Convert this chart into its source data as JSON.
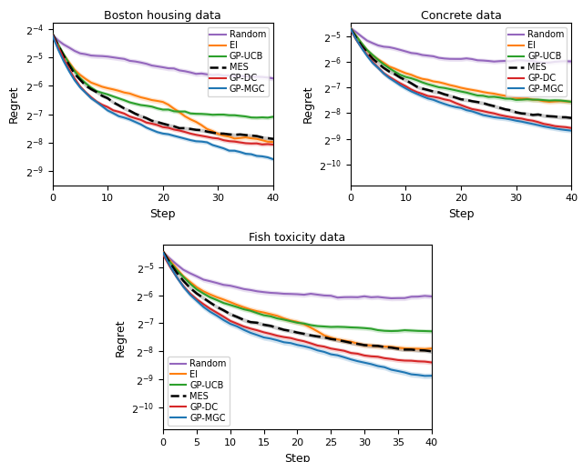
{
  "titles": [
    "Boston housing data",
    "Concrete data",
    "Fish toxicity data"
  ],
  "xlabel": "Step",
  "ylabel": "Regret",
  "n_steps": 41,
  "methods": [
    "Random",
    "EI",
    "GP-UCB",
    "MES",
    "GP-DC",
    "GP-MGC"
  ],
  "colors": [
    "#9467bd",
    "#ff7f0e",
    "#2ca02c",
    "#000000",
    "#d62728",
    "#1f77b4"
  ],
  "line_styles": [
    "-",
    "-",
    "-",
    "--",
    "-",
    "-"
  ],
  "alpha_fill": 0.2,
  "seeds": [
    0,
    1,
    2,
    3,
    4,
    5
  ],
  "boston": {
    "ylim_exp": [
      -9.5,
      -3.8
    ],
    "yticks_exp": [
      -4,
      -5,
      -6,
      -7,
      -8,
      -9
    ],
    "means": {
      "Random": [
        -4.2,
        -4.4,
        -4.55,
        -4.67,
        -4.76,
        -4.83,
        -4.88,
        -4.92,
        -4.95,
        -4.97,
        -5.0,
        -5.03,
        -5.07,
        -5.1,
        -5.14,
        -5.18,
        -5.22,
        -5.26,
        -5.3,
        -5.33,
        -5.36,
        -5.39,
        -5.42,
        -5.45,
        -5.47,
        -5.5,
        -5.52,
        -5.54,
        -5.56,
        -5.58,
        -5.6,
        -5.62,
        -5.63,
        -5.65,
        -5.66,
        -5.67,
        -5.68,
        -5.69,
        -5.7,
        -5.71,
        -5.72
      ],
      "EI": [
        -4.2,
        -4.55,
        -4.88,
        -5.18,
        -5.42,
        -5.6,
        -5.73,
        -5.84,
        -5.93,
        -6.0,
        -6.06,
        -6.13,
        -6.19,
        -6.25,
        -6.31,
        -6.37,
        -6.42,
        -6.47,
        -6.52,
        -6.56,
        -6.6,
        -6.7,
        -6.82,
        -6.95,
        -7.1,
        -7.2,
        -7.3,
        -7.4,
        -7.5,
        -7.58,
        -7.65,
        -7.7,
        -7.75,
        -7.8,
        -7.82,
        -7.84,
        -7.87,
        -7.9,
        -7.92,
        -7.95,
        -7.98
      ],
      "GP-UCB": [
        -4.2,
        -4.55,
        -4.88,
        -5.2,
        -5.48,
        -5.7,
        -5.88,
        -6.02,
        -6.12,
        -6.2,
        -6.27,
        -6.35,
        -6.42,
        -6.5,
        -6.57,
        -6.63,
        -6.68,
        -6.72,
        -6.76,
        -6.8,
        -6.83,
        -6.86,
        -6.89,
        -6.91,
        -6.93,
        -6.95,
        -6.96,
        -6.97,
        -6.98,
        -6.99,
        -7.0,
        -7.01,
        -7.02,
        -7.03,
        -7.04,
        -7.05,
        -7.06,
        -7.07,
        -7.07,
        -7.08,
        -7.08
      ],
      "MES": [
        -4.2,
        -4.58,
        -4.95,
        -5.28,
        -5.56,
        -5.78,
        -5.96,
        -6.1,
        -6.22,
        -6.35,
        -6.47,
        -6.58,
        -6.68,
        -6.78,
        -6.87,
        -6.97,
        -7.06,
        -7.14,
        -7.21,
        -7.27,
        -7.32,
        -7.36,
        -7.4,
        -7.44,
        -7.47,
        -7.5,
        -7.53,
        -7.56,
        -7.59,
        -7.62,
        -7.64,
        -7.66,
        -7.68,
        -7.7,
        -7.72,
        -7.74,
        -7.76,
        -7.78,
        -7.8,
        -7.82,
        -7.84
      ],
      "GP-DC": [
        -4.2,
        -4.62,
        -5.02,
        -5.4,
        -5.72,
        -5.98,
        -6.2,
        -6.38,
        -6.52,
        -6.65,
        -6.76,
        -6.86,
        -6.94,
        -7.01,
        -7.08,
        -7.14,
        -7.2,
        -7.26,
        -7.31,
        -7.36,
        -7.41,
        -7.46,
        -7.51,
        -7.56,
        -7.61,
        -7.65,
        -7.69,
        -7.73,
        -7.77,
        -7.81,
        -7.84,
        -7.87,
        -7.9,
        -7.93,
        -7.95,
        -7.97,
        -7.99,
        -8.01,
        -8.03,
        -8.05,
        -8.07
      ],
      "GP-MGC": [
        -4.2,
        -4.68,
        -5.1,
        -5.48,
        -5.8,
        -6.06,
        -6.28,
        -6.46,
        -6.61,
        -6.74,
        -6.85,
        -6.95,
        -7.05,
        -7.14,
        -7.23,
        -7.31,
        -7.39,
        -7.47,
        -7.54,
        -7.61,
        -7.67,
        -7.73,
        -7.78,
        -7.83,
        -7.88,
        -7.93,
        -7.98,
        -8.03,
        -8.08,
        -8.13,
        -8.18,
        -8.23,
        -8.28,
        -8.32,
        -8.36,
        -8.39,
        -8.42,
        -8.45,
        -8.48,
        -8.51,
        -8.55
      ]
    },
    "stds": {
      "Random": 0.5,
      "EI": 0.5,
      "GP-UCB": 0.4,
      "MES": 0.35,
      "GP-DC": 0.4,
      "GP-MGC": 0.4
    }
  },
  "concrete": {
    "ylim_exp": [
      -10.8,
      -4.5
    ],
    "yticks_exp": [
      -5,
      -6,
      -7,
      -8,
      -9,
      -10
    ],
    "means": {
      "Random": [
        -4.7,
        -4.88,
        -5.03,
        -5.16,
        -5.27,
        -5.36,
        -5.43,
        -5.48,
        -5.53,
        -5.57,
        -5.61,
        -5.65,
        -5.68,
        -5.72,
        -5.75,
        -5.78,
        -5.8,
        -5.82,
        -5.84,
        -5.86,
        -5.87,
        -5.88,
        -5.89,
        -5.9,
        -5.91,
        -5.92,
        -5.93,
        -5.94,
        -5.95,
        -5.95,
        -5.96,
        -5.96,
        -5.97,
        -5.97,
        -5.97,
        -5.98,
        -5.98,
        -5.98,
        -5.99,
        -5.99,
        -6.0
      ],
      "EI": [
        -4.7,
        -5.0,
        -5.28,
        -5.53,
        -5.74,
        -5.9,
        -6.04,
        -6.17,
        -6.27,
        -6.37,
        -6.45,
        -6.53,
        -6.6,
        -6.67,
        -6.73,
        -6.79,
        -6.84,
        -6.89,
        -6.94,
        -6.99,
        -7.03,
        -7.07,
        -7.11,
        -7.15,
        -7.19,
        -7.23,
        -7.27,
        -7.31,
        -7.34,
        -7.37,
        -7.4,
        -7.43,
        -7.45,
        -7.47,
        -7.49,
        -7.51,
        -7.52,
        -7.53,
        -7.54,
        -7.55,
        -7.56
      ],
      "GP-UCB": [
        -4.7,
        -5.02,
        -5.3,
        -5.55,
        -5.77,
        -5.96,
        -6.12,
        -6.26,
        -6.37,
        -6.47,
        -6.56,
        -6.64,
        -6.72,
        -6.8,
        -6.87,
        -6.93,
        -6.99,
        -7.04,
        -7.08,
        -7.12,
        -7.16,
        -7.2,
        -7.24,
        -7.27,
        -7.3,
        -7.33,
        -7.36,
        -7.39,
        -7.41,
        -7.43,
        -7.45,
        -7.47,
        -7.49,
        -7.5,
        -7.51,
        -7.52,
        -7.52,
        -7.53,
        -7.54,
        -7.54,
        -7.55
      ],
      "MES": [
        -4.7,
        -5.05,
        -5.36,
        -5.63,
        -5.86,
        -6.06,
        -6.23,
        -6.38,
        -6.51,
        -6.62,
        -6.73,
        -6.83,
        -6.93,
        -7.02,
        -7.1,
        -7.17,
        -7.23,
        -7.29,
        -7.35,
        -7.41,
        -7.47,
        -7.52,
        -7.57,
        -7.62,
        -7.67,
        -7.72,
        -7.77,
        -7.82,
        -7.87,
        -7.91,
        -7.95,
        -7.99,
        -8.02,
        -8.05,
        -8.08,
        -8.11,
        -8.13,
        -8.15,
        -8.17,
        -8.19,
        -8.21
      ],
      "GP-DC": [
        -4.7,
        -5.08,
        -5.43,
        -5.73,
        -5.99,
        -6.21,
        -6.4,
        -6.56,
        -6.7,
        -6.83,
        -6.95,
        -7.05,
        -7.14,
        -7.22,
        -7.3,
        -7.37,
        -7.44,
        -7.51,
        -7.57,
        -7.63,
        -7.69,
        -7.75,
        -7.8,
        -7.86,
        -7.91,
        -7.96,
        -8.01,
        -8.06,
        -8.11,
        -8.15,
        -8.19,
        -8.23,
        -8.27,
        -8.31,
        -8.35,
        -8.39,
        -8.43,
        -8.47,
        -8.51,
        -8.55,
        -8.59
      ],
      "GP-MGC": [
        -4.7,
        -5.1,
        -5.46,
        -5.78,
        -6.05,
        -6.28,
        -6.48,
        -6.64,
        -6.79,
        -6.92,
        -7.04,
        -7.14,
        -7.23,
        -7.32,
        -7.41,
        -7.49,
        -7.57,
        -7.64,
        -7.7,
        -7.76,
        -7.82,
        -7.88,
        -7.93,
        -7.98,
        -8.03,
        -8.08,
        -8.13,
        -8.18,
        -8.23,
        -8.28,
        -8.33,
        -8.37,
        -8.41,
        -8.45,
        -8.49,
        -8.53,
        -8.56,
        -8.59,
        -8.62,
        -8.65,
        -8.68
      ]
    },
    "stds": {
      "Random": 0.5,
      "EI": 0.5,
      "GP-UCB": 0.5,
      "MES": 0.4,
      "GP-DC": 0.5,
      "GP-MGC": 0.5
    }
  },
  "fish": {
    "ylim_exp": [
      -10.8,
      -4.2
    ],
    "yticks_exp": [
      -5,
      -6,
      -7,
      -8,
      -9,
      -10
    ],
    "means": {
      "Random": [
        -4.5,
        -4.73,
        -4.92,
        -5.08,
        -5.21,
        -5.32,
        -5.41,
        -5.49,
        -5.56,
        -5.62,
        -5.67,
        -5.72,
        -5.77,
        -5.81,
        -5.84,
        -5.87,
        -5.9,
        -5.92,
        -5.94,
        -5.96,
        -5.97,
        -5.98,
        -5.99,
        -6.0,
        -6.01,
        -6.02,
        -6.03,
        -6.03,
        -6.04,
        -6.04,
        -6.05,
        -6.05,
        -6.05,
        -6.06,
        -6.06,
        -6.06,
        -6.07,
        -6.07,
        -6.07,
        -6.07,
        -6.08
      ],
      "EI": [
        -4.5,
        -4.8,
        -5.07,
        -5.3,
        -5.5,
        -5.67,
        -5.82,
        -5.95,
        -6.06,
        -6.16,
        -6.25,
        -6.34,
        -6.42,
        -6.5,
        -6.57,
        -6.64,
        -6.7,
        -6.76,
        -6.82,
        -6.87,
        -6.92,
        -7.02,
        -7.18,
        -7.32,
        -7.44,
        -7.52,
        -7.58,
        -7.63,
        -7.68,
        -7.72,
        -7.76,
        -7.79,
        -7.81,
        -7.83,
        -7.84,
        -7.85,
        -7.86,
        -7.87,
        -7.87,
        -7.88,
        -7.88
      ],
      "GP-UCB": [
        -4.5,
        -4.82,
        -5.1,
        -5.35,
        -5.57,
        -5.76,
        -5.92,
        -6.06,
        -6.18,
        -6.28,
        -6.37,
        -6.45,
        -6.52,
        -6.59,
        -6.65,
        -6.71,
        -6.76,
        -6.81,
        -6.86,
        -6.9,
        -6.94,
        -6.98,
        -7.01,
        -7.04,
        -7.07,
        -7.1,
        -7.13,
        -7.15,
        -7.17,
        -7.19,
        -7.21,
        -7.22,
        -7.24,
        -7.25,
        -7.26,
        -7.27,
        -7.28,
        -7.29,
        -7.29,
        -7.3,
        -7.3
      ],
      "MES": [
        -4.5,
        -4.87,
        -5.2,
        -5.49,
        -5.74,
        -5.95,
        -6.12,
        -6.27,
        -6.4,
        -6.52,
        -6.63,
        -6.73,
        -6.82,
        -6.9,
        -6.97,
        -7.04,
        -7.1,
        -7.16,
        -7.22,
        -7.27,
        -7.32,
        -7.37,
        -7.42,
        -7.47,
        -7.52,
        -7.57,
        -7.61,
        -7.65,
        -7.69,
        -7.73,
        -7.77,
        -7.8,
        -7.83,
        -7.86,
        -7.89,
        -7.91,
        -7.93,
        -7.95,
        -7.97,
        -7.98,
        -8.0
      ],
      "GP-DC": [
        -4.5,
        -4.92,
        -5.3,
        -5.63,
        -5.91,
        -6.14,
        -6.34,
        -6.51,
        -6.65,
        -6.78,
        -6.9,
        -7.0,
        -7.09,
        -7.17,
        -7.25,
        -7.32,
        -7.38,
        -7.44,
        -7.5,
        -7.56,
        -7.62,
        -7.67,
        -7.73,
        -7.79,
        -7.84,
        -7.89,
        -7.94,
        -7.99,
        -8.04,
        -8.08,
        -8.12,
        -8.16,
        -8.2,
        -8.24,
        -8.27,
        -8.3,
        -8.33,
        -8.36,
        -8.39,
        -8.41,
        -8.44
      ],
      "GP-MGC": [
        -4.5,
        -4.97,
        -5.38,
        -5.72,
        -6.0,
        -6.23,
        -6.44,
        -6.61,
        -6.76,
        -6.89,
        -7.01,
        -7.11,
        -7.2,
        -7.29,
        -7.37,
        -7.44,
        -7.51,
        -7.58,
        -7.64,
        -7.7,
        -7.76,
        -7.82,
        -7.88,
        -7.94,
        -8.0,
        -8.07,
        -8.13,
        -8.2,
        -8.27,
        -8.34,
        -8.41,
        -8.47,
        -8.53,
        -8.59,
        -8.64,
        -8.69,
        -8.73,
        -8.77,
        -8.81,
        -8.85,
        -8.88
      ]
    },
    "stds": {
      "Random": 0.5,
      "EI": 0.55,
      "GP-UCB": 0.45,
      "MES": 0.4,
      "GP-DC": 0.45,
      "GP-MGC": 0.55
    }
  }
}
